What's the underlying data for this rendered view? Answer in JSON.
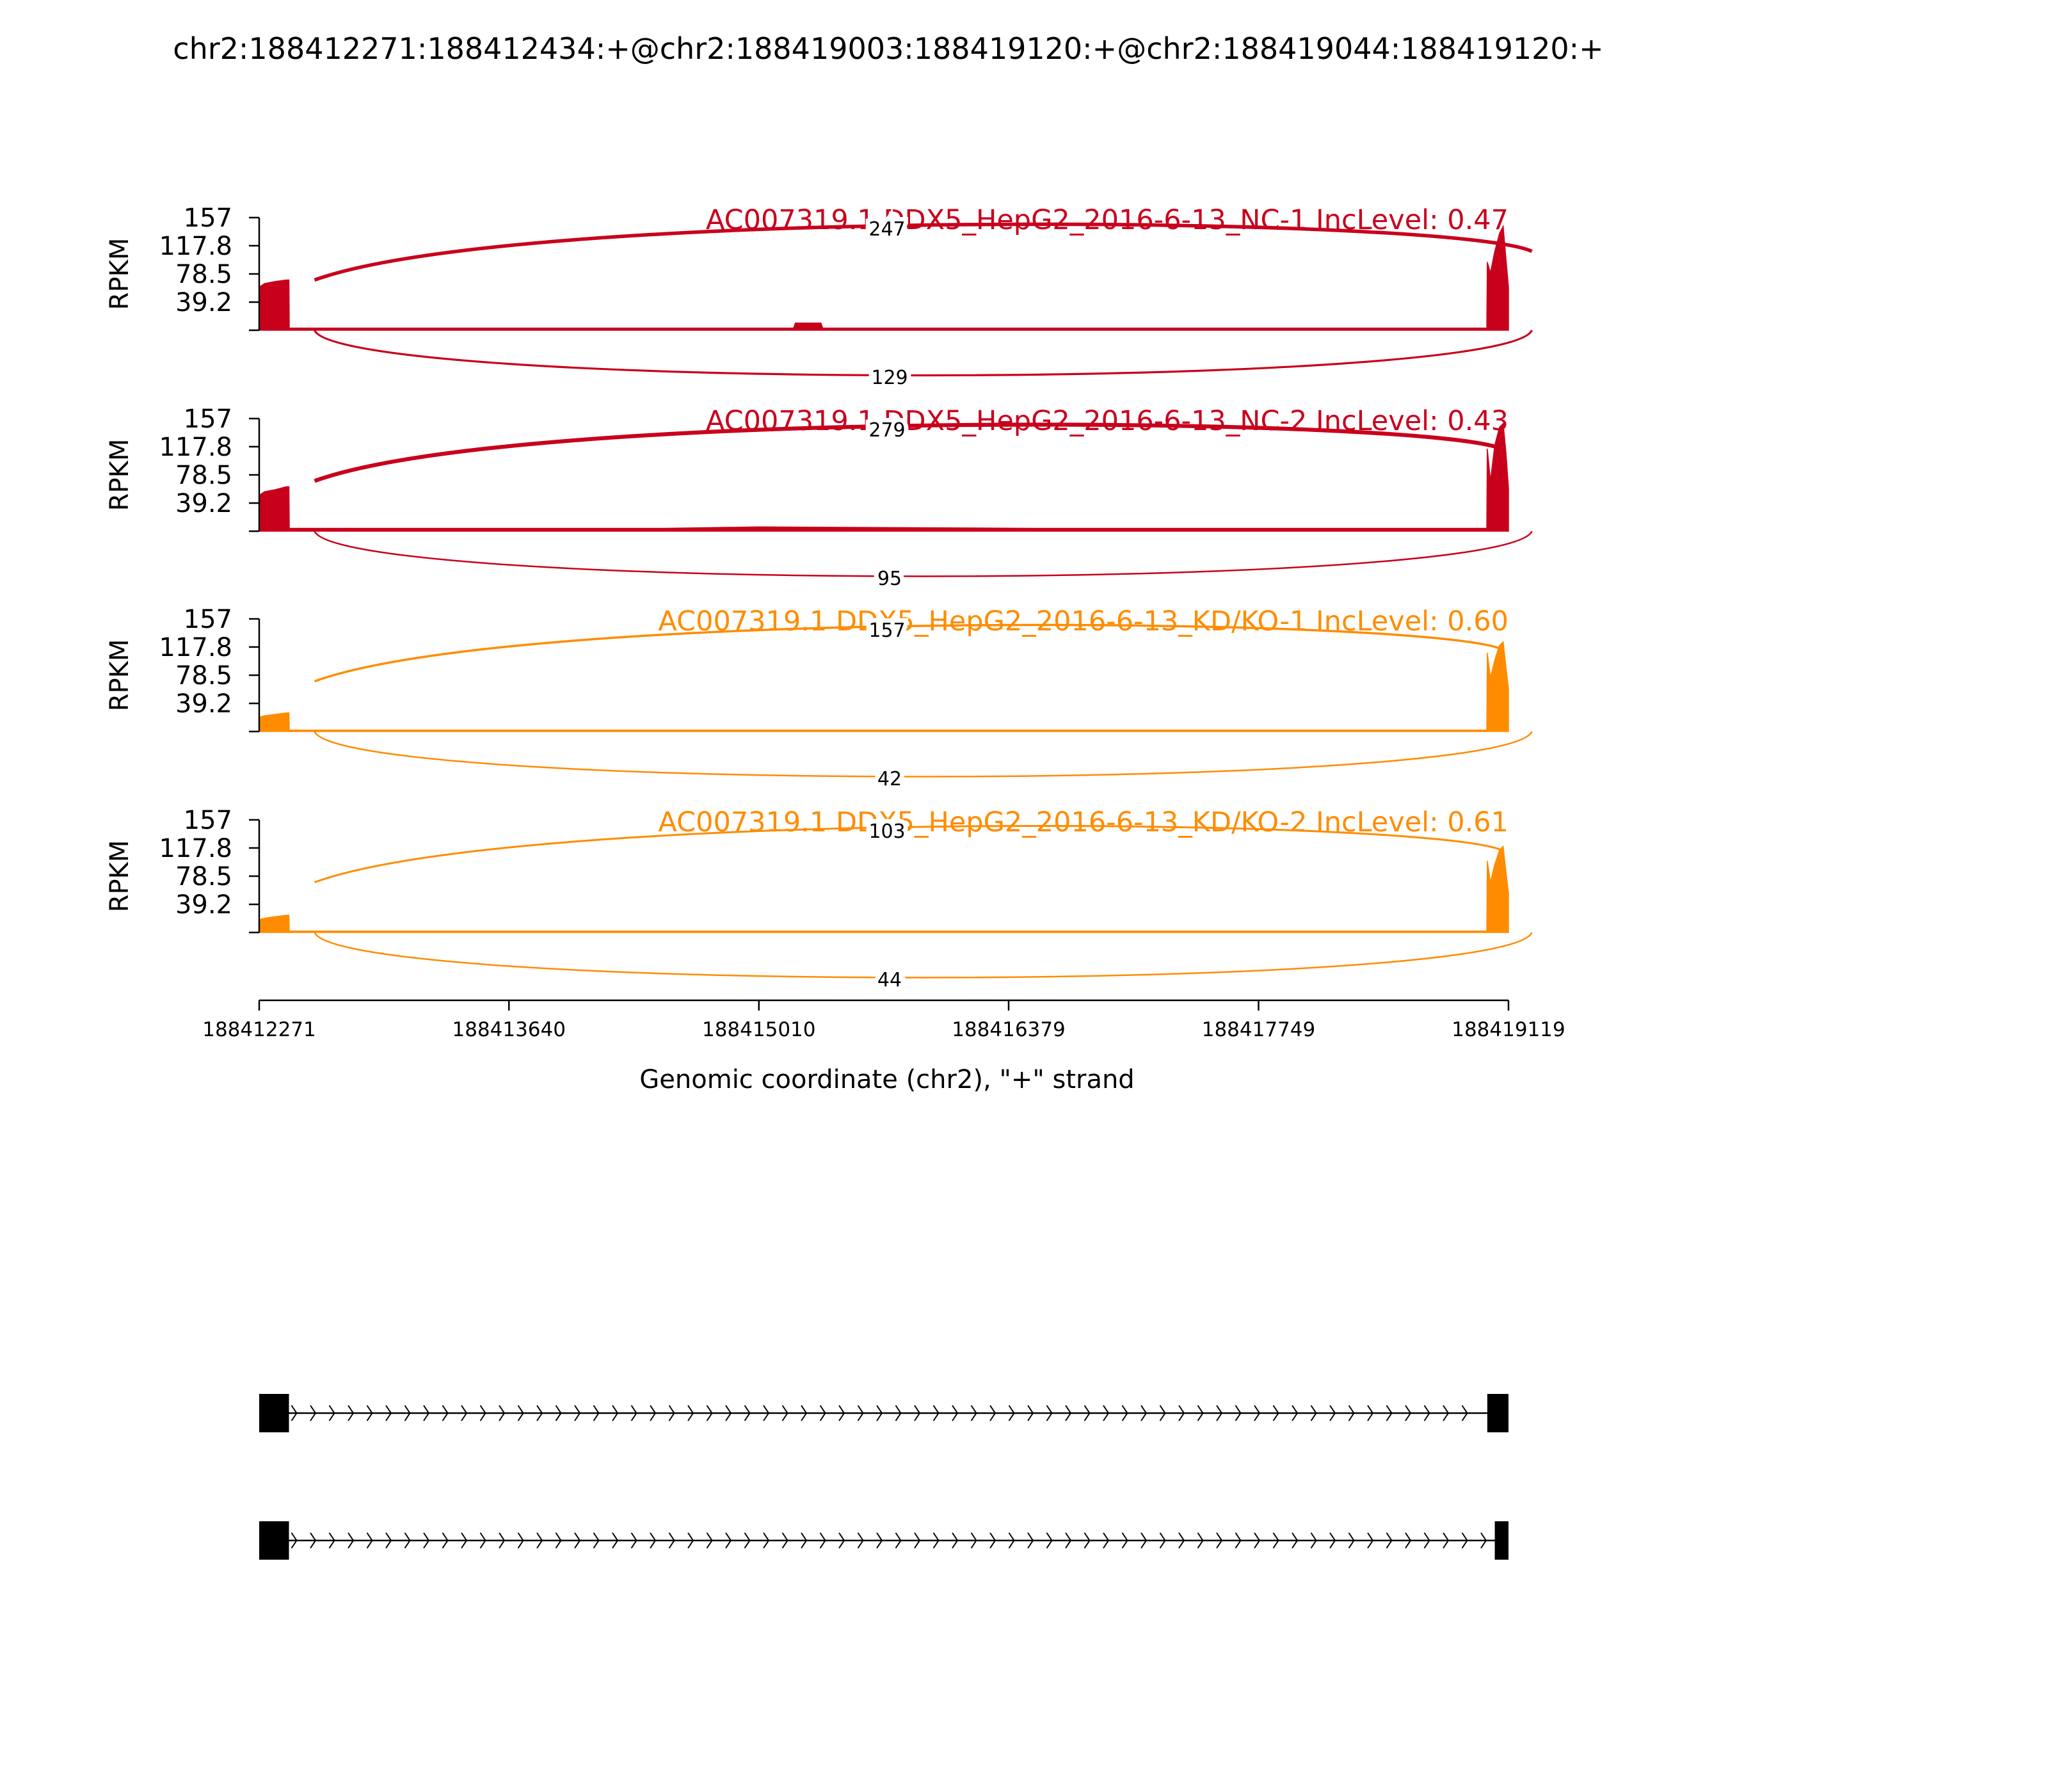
{
  "chart_data": {
    "type": "sashimi",
    "title": "chr2:188412271:188412434:+@chr2:188419003:188419120:+@chr2:188419044:188419120:+",
    "xlabel": "Genomic coordinate (chr2), \"+\" strand",
    "ylabel": "RPKM",
    "xlim": [
      188412271,
      188419119
    ],
    "x_ticks": [
      188412271,
      188413640,
      188415010,
      188416379,
      188417749,
      188419119
    ],
    "ylim": [
      0,
      157
    ],
    "y_ticks": [
      39.2,
      78.5,
      117.8,
      157
    ],
    "exons": {
      "exon1": [
        188412271,
        188412434
      ],
      "exon2_long": [
        188419003,
        188419120
      ],
      "exon2_short": [
        188419044,
        188419120
      ]
    },
    "tracks": [
      {
        "name": "AC007319.1 DDX5_HepG2_2016-6-13_NC-1 IncLevel: 0.47",
        "color": "#c9001c",
        "upper_junction_reads": 247,
        "lower_junction_reads": 129,
        "coverage": [
          [
            188412271,
            60
          ],
          [
            188412300,
            65
          ],
          [
            188412360,
            68
          ],
          [
            188412420,
            70
          ],
          [
            188412434,
            70
          ],
          [
            188412436,
            3
          ],
          [
            188413000,
            3
          ],
          [
            188415200,
            3
          ],
          [
            188415210,
            10
          ],
          [
            188415350,
            10
          ],
          [
            188415360,
            3
          ],
          [
            188419000,
            3
          ],
          [
            188419003,
            95
          ],
          [
            188419020,
            80
          ],
          [
            188419044,
            110
          ],
          [
            188419070,
            135
          ],
          [
            188419090,
            145
          ],
          [
            188419105,
            100
          ],
          [
            188419119,
            60
          ]
        ]
      },
      {
        "name": "AC007319.1 DDX5_HepG2_2016-6-13_NC-2 IncLevel: 0.43",
        "color": "#c9001c",
        "upper_junction_reads": 279,
        "lower_junction_reads": 95,
        "coverage": [
          [
            188412271,
            50
          ],
          [
            188412300,
            55
          ],
          [
            188412360,
            58
          ],
          [
            188412420,
            62
          ],
          [
            188412434,
            62
          ],
          [
            188412436,
            4
          ],
          [
            188414500,
            4
          ],
          [
            188415010,
            6
          ],
          [
            188416500,
            4
          ],
          [
            188419000,
            4
          ],
          [
            188419003,
            115
          ],
          [
            188419020,
            70
          ],
          [
            188419044,
            120
          ],
          [
            188419070,
            145
          ],
          [
            188419090,
            150
          ],
          [
            188419105,
            110
          ],
          [
            188419119,
            60
          ]
        ]
      },
      {
        "name": "AC007319.1 DDX5_HepG2_2016-6-13_KD/KO-1 IncLevel: 0.60",
        "color": "#ff8c00",
        "upper_junction_reads": 157,
        "lower_junction_reads": 42,
        "coverage": [
          [
            188412271,
            20
          ],
          [
            188412300,
            22
          ],
          [
            188412360,
            24
          ],
          [
            188412420,
            26
          ],
          [
            188412434,
            26
          ],
          [
            188412436,
            2
          ],
          [
            188419000,
            2
          ],
          [
            188419003,
            110
          ],
          [
            188419020,
            75
          ],
          [
            188419044,
            100
          ],
          [
            188419070,
            120
          ],
          [
            188419090,
            125
          ],
          [
            188419105,
            90
          ],
          [
            188419119,
            60
          ]
        ]
      },
      {
        "name": "AC007319.1 DDX5_HepG2_2016-6-13_KD/KO-2 IncLevel: 0.61",
        "color": "#ff8c00",
        "upper_junction_reads": 103,
        "lower_junction_reads": 44,
        "coverage": [
          [
            188412271,
            18
          ],
          [
            188412300,
            20
          ],
          [
            188412360,
            22
          ],
          [
            188412420,
            24
          ],
          [
            188412434,
            24
          ],
          [
            188412436,
            2
          ],
          [
            188419000,
            2
          ],
          [
            188419003,
            100
          ],
          [
            188419020,
            70
          ],
          [
            188419044,
            95
          ],
          [
            188419070,
            115
          ],
          [
            188419090,
            120
          ],
          [
            188419105,
            85
          ],
          [
            188419119,
            55
          ]
        ]
      }
    ],
    "isoforms": [
      {
        "exons": [
          [
            188412271,
            188412434
          ],
          [
            188419003,
            188419120
          ]
        ]
      },
      {
        "exons": [
          [
            188412271,
            188412434
          ],
          [
            188419044,
            188419120
          ]
        ]
      }
    ]
  }
}
